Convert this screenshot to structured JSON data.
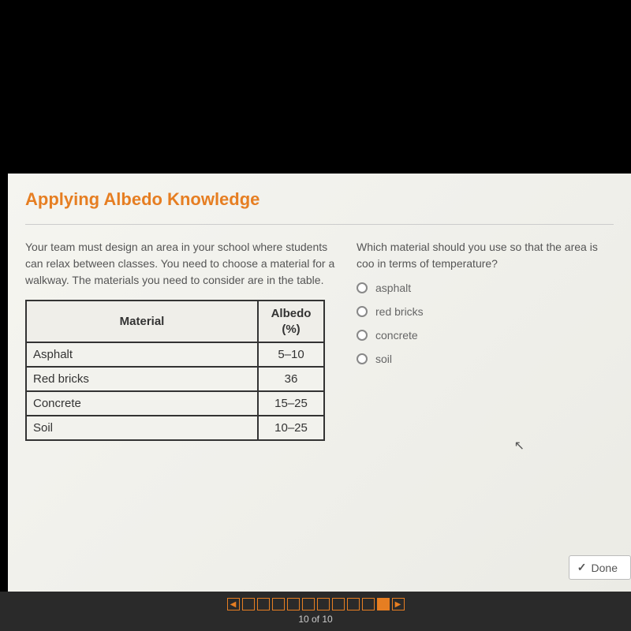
{
  "title": "Applying Albedo Knowledge",
  "leftPrompt": "Your team must design an area in your school where students can relax between classes. You need to choose a material for a walkway. The materials you need to consider are in the table.",
  "rightPrompt": "Which material should you use so that the area is coo in terms of temperature?",
  "table": {
    "headers": {
      "material": "Material",
      "albedo": "Albedo (%)"
    },
    "rows": [
      {
        "material": "Asphalt",
        "albedo": "5–10"
      },
      {
        "material": "Red bricks",
        "albedo": "36"
      },
      {
        "material": "Concrete",
        "albedo": "15–25"
      },
      {
        "material": "Soil",
        "albedo": "10–25"
      }
    ]
  },
  "options": {
    "a": "asphalt",
    "b": "red bricks",
    "c": "concrete",
    "d": "soil"
  },
  "doneLabel": "Done",
  "pageCounter": "10 of 10",
  "nav": {
    "totalBoxes": 10,
    "activeIndex": 9
  },
  "colors": {
    "accent": "#e67e22",
    "background": "#000000",
    "panel": "#f5f5f0",
    "tableBorder": "#333333",
    "textMuted": "#555555"
  }
}
